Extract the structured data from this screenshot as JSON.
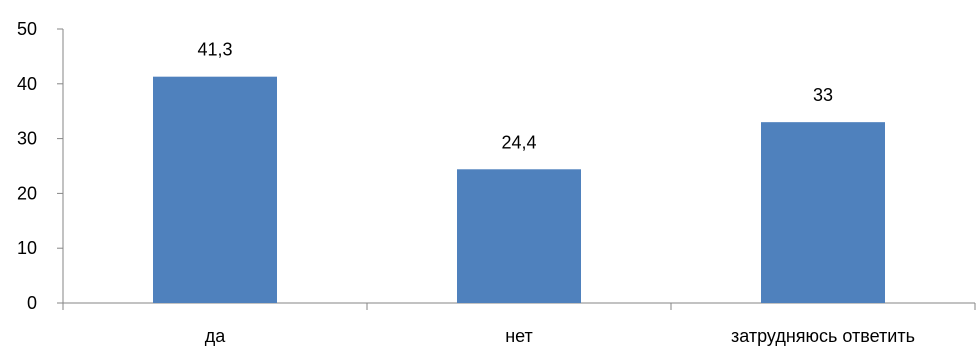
{
  "chart_data": {
    "type": "bar",
    "categories": [
      "да",
      "нет",
      "затрудняюсь ответить"
    ],
    "values": [
      41.3,
      24.4,
      33
    ],
    "value_labels": [
      "41,3",
      "24,4",
      "33"
    ],
    "ylim": [
      0,
      50
    ],
    "yticks": [
      "0",
      "10",
      "20",
      "30",
      "40",
      "50"
    ],
    "grid": false,
    "legend": "none",
    "bar_color": "#4F81BD",
    "axis_color": "#868686"
  }
}
